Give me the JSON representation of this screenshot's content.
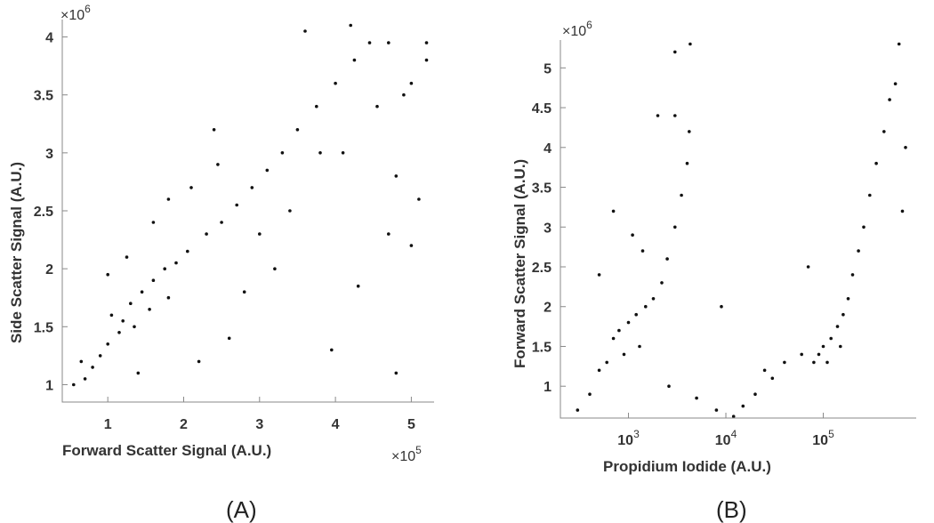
{
  "chart_data": [
    {
      "type": "scatter",
      "panel_label": "(A)",
      "xlabel": "Forward Scatter Signal (A.U.)",
      "ylabel": "Side Scatter Signal (A.U.)",
      "x_multiplier": {
        "base": "×10",
        "exp": "5"
      },
      "y_multiplier": {
        "base": "×10",
        "exp": "6"
      },
      "xlim": [
        0.4,
        5.3
      ],
      "ylim": [
        0.85,
        4.15
      ],
      "xticks": [
        1,
        2,
        3,
        4,
        5
      ],
      "xticklabels": [
        "1",
        "2",
        "3",
        "4",
        "5"
      ],
      "yticks": [
        1,
        1.5,
        2,
        2.5,
        3,
        3.5,
        4
      ],
      "yticklabels": [
        "1",
        "1.5",
        "2",
        "2.5",
        "3",
        "3.5",
        "4"
      ],
      "xscale": "linear",
      "grid": false,
      "series": [
        {
          "values": [
            [
              1.05,
              1.6
            ],
            [
              1.2,
              1.55
            ],
            [
              1.3,
              1.7
            ],
            [
              1.45,
              1.8
            ],
            [
              1.6,
              1.9
            ],
            [
              1.75,
              2.0
            ],
            [
              1.9,
              2.05
            ],
            [
              2.05,
              2.15
            ],
            [
              1.15,
              1.45
            ],
            [
              1.35,
              1.5
            ],
            [
              1.55,
              1.65
            ],
            [
              1.8,
              1.75
            ],
            [
              1.0,
              1.35
            ],
            [
              0.9,
              1.25
            ],
            [
              0.8,
              1.15
            ],
            [
              0.7,
              1.05
            ],
            [
              2.3,
              2.3
            ],
            [
              2.5,
              2.4
            ],
            [
              2.7,
              2.55
            ],
            [
              2.9,
              2.7
            ],
            [
              3.1,
              2.85
            ],
            [
              3.3,
              3.0
            ],
            [
              3.5,
              3.2
            ],
            [
              3.75,
              3.4
            ],
            [
              4.0,
              3.6
            ],
            [
              4.25,
              3.8
            ],
            [
              4.45,
              3.95
            ],
            [
              4.7,
              3.95
            ],
            [
              5.2,
              3.95
            ],
            [
              3.6,
              4.05
            ],
            [
              4.2,
              4.1
            ],
            [
              5.0,
              3.6
            ],
            [
              4.8,
              2.8
            ],
            [
              5.1,
              2.6
            ],
            [
              5.0,
              2.2
            ],
            [
              4.7,
              2.3
            ],
            [
              4.3,
              1.85
            ],
            [
              3.95,
              1.3
            ],
            [
              4.8,
              1.1
            ],
            [
              3.2,
              2.0
            ],
            [
              2.8,
              1.8
            ],
            [
              2.6,
              1.4
            ],
            [
              2.2,
              1.2
            ],
            [
              1.4,
              1.1
            ],
            [
              1.6,
              2.4
            ],
            [
              1.8,
              2.6
            ],
            [
              2.1,
              2.7
            ],
            [
              2.4,
              3.2
            ],
            [
              1.25,
              2.1
            ],
            [
              1.0,
              1.95
            ],
            [
              0.55,
              1.0
            ],
            [
              0.65,
              1.2
            ],
            [
              2.45,
              2.9
            ],
            [
              3.0,
              2.3
            ],
            [
              3.4,
              2.5
            ],
            [
              3.8,
              3.0
            ],
            [
              4.1,
              3.0
            ],
            [
              4.55,
              3.4
            ],
            [
              4.9,
              3.5
            ],
            [
              5.2,
              3.8
            ]
          ]
        }
      ]
    },
    {
      "type": "scatter",
      "panel_label": "(B)",
      "xlabel": "Propidium Iodide (A.U.)",
      "ylabel": "Forward Scatter Signal (A.U.)",
      "y_multiplier": {
        "base": "×10",
        "exp": "6"
      },
      "xlim": [
        200,
        900000
      ],
      "ylim": [
        0.6,
        5.35
      ],
      "xticks": [
        1000,
        10000,
        100000
      ],
      "xticklabels": [
        {
          "base": "10",
          "exp": "3"
        },
        {
          "base": "10",
          "exp": "4"
        },
        {
          "base": "10",
          "exp": "5"
        }
      ],
      "yticks": [
        1,
        1.5,
        2,
        2.5,
        3,
        3.5,
        4,
        4.5,
        5
      ],
      "yticklabels": [
        "1",
        "1.5",
        "2",
        "2.5",
        "3",
        "3.5",
        "4",
        "4.5",
        "5"
      ],
      "xscale": "log",
      "grid": false,
      "series": [
        {
          "values": [
            [
              1000,
              1.8
            ],
            [
              1200,
              1.9
            ],
            [
              1500,
              2.0
            ],
            [
              800,
              1.7
            ],
            [
              700,
              1.6
            ],
            [
              1800,
              2.1
            ],
            [
              2200,
              2.3
            ],
            [
              1300,
              1.5
            ],
            [
              900,
              1.4
            ],
            [
              600,
              1.3
            ],
            [
              500,
              1.2
            ],
            [
              2500,
              2.6
            ],
            [
              3000,
              3.0
            ],
            [
              3500,
              3.4
            ],
            [
              4000,
              3.8
            ],
            [
              4200,
              4.2
            ],
            [
              3000,
              4.4
            ],
            [
              1400,
              2.7
            ],
            [
              1100,
              2.9
            ],
            [
              700,
              3.2
            ],
            [
              400,
              0.9
            ],
            [
              300,
              0.7
            ],
            [
              2600,
              1.0
            ],
            [
              5000,
              0.85
            ],
            [
              8000,
              0.7
            ],
            [
              12000,
              0.62
            ],
            [
              15000,
              0.75
            ],
            [
              20000,
              0.9
            ],
            [
              30000,
              1.1
            ],
            [
              40000,
              1.3
            ],
            [
              25000,
              1.2
            ],
            [
              60000,
              1.4
            ],
            [
              90000,
              1.4
            ],
            [
              100000,
              1.5
            ],
            [
              120000,
              1.6
            ],
            [
              140000,
              1.75
            ],
            [
              160000,
              1.9
            ],
            [
              180000,
              2.1
            ],
            [
              200000,
              2.4
            ],
            [
              230000,
              2.7
            ],
            [
              260000,
              3.0
            ],
            [
              300000,
              3.4
            ],
            [
              350000,
              3.8
            ],
            [
              420000,
              4.2
            ],
            [
              480000,
              4.6
            ],
            [
              550000,
              4.8
            ],
            [
              600000,
              5.3
            ],
            [
              80000,
              1.3
            ],
            [
              110000,
              1.3
            ],
            [
              150000,
              1.5
            ],
            [
              70000,
              2.5
            ],
            [
              4300,
              5.3
            ],
            [
              3000,
              5.2
            ],
            [
              2000,
              4.4
            ],
            [
              500,
              2.4
            ],
            [
              9000,
              2.0
            ],
            [
              700000,
              4.0
            ],
            [
              650000,
              3.2
            ]
          ]
        }
      ]
    }
  ]
}
